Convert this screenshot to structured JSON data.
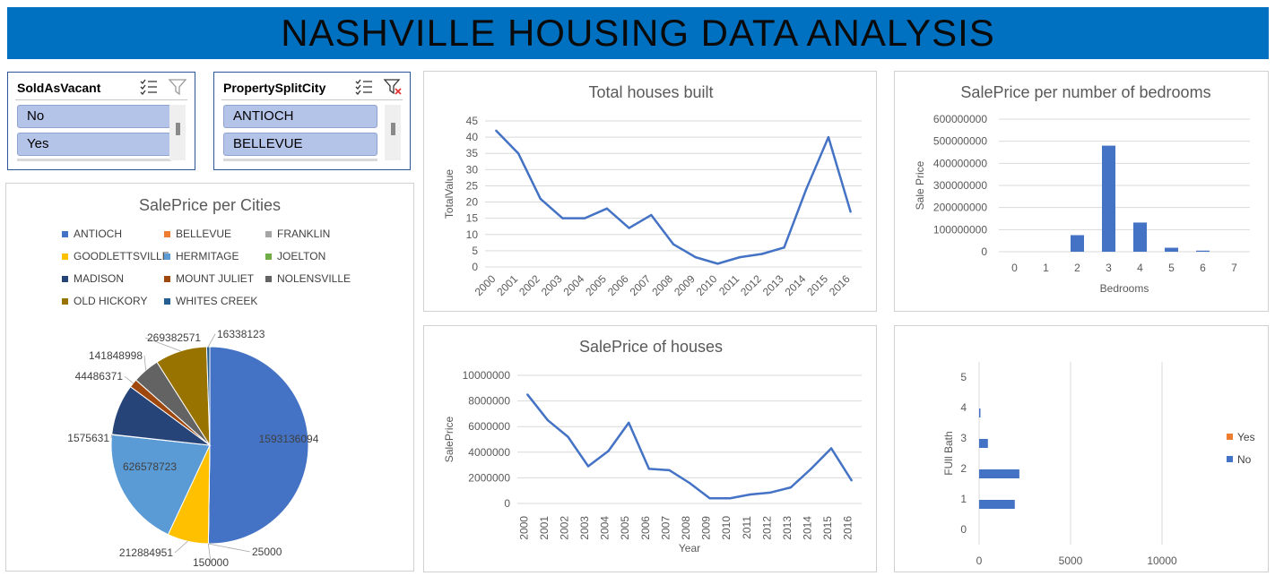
{
  "header": {
    "title": "NASHVILLE HOUSING DATA ANALYSIS",
    "bg_color": "#0070c0"
  },
  "slicers": [
    {
      "title": "SoldAsVacant",
      "items": [
        "No",
        "Yes"
      ],
      "filter_active": false
    },
    {
      "title": "PropertySplitCity",
      "items": [
        "ANTIOCH",
        "BELLEVUE"
      ],
      "filter_active": true
    }
  ],
  "chart_data": [
    {
      "type": "pie",
      "title": "SalePrice per Cities",
      "legend_position": "top",
      "series": [
        {
          "name": "ANTIOCH",
          "value": 1593136094,
          "label": "1593136094",
          "color": "#4472c4"
        },
        {
          "name": "BELLEVUE",
          "value": 25000,
          "label": "25000",
          "color": "#ed7d31"
        },
        {
          "name": "FRANKLIN",
          "value": 150000,
          "label": "150000",
          "color": "#a5a5a5"
        },
        {
          "name": "GOODLETTSVILLE",
          "value": 212884951,
          "label": "212884951",
          "color": "#ffc000"
        },
        {
          "name": "HERMITAGE",
          "value": 626578723,
          "label": "626578723",
          "color": "#5b9bd5"
        },
        {
          "name": "JOELTON",
          "value": 1575631,
          "label": "1575631",
          "color": "#70ad47"
        },
        {
          "name": "MADISON",
          "value": 265000000,
          "label": "",
          "color": "#264478"
        },
        {
          "name": "MOUNT JULIET",
          "value": 44486371,
          "label": "44486371",
          "color": "#9e480e"
        },
        {
          "name": "NOLENSVILLE",
          "value": 141848998,
          "label": "141848998",
          "color": "#636363"
        },
        {
          "name": "OLD HICKORY",
          "value": 269382571,
          "label": "269382571",
          "color": "#997300"
        },
        {
          "name": "WHITES CREEK",
          "value": 16338123,
          "label": "16338123",
          "color": "#255e91"
        }
      ]
    },
    {
      "type": "line",
      "title": "Total houses built",
      "xlabel": "",
      "ylabel": "TotalValue",
      "ylim": [
        0,
        45
      ],
      "yticks": [
        "0",
        "5",
        "10",
        "15",
        "20",
        "25",
        "30",
        "35",
        "40",
        "45"
      ],
      "grid": true,
      "x": [
        "2000",
        "2001",
        "2002",
        "2003",
        "2004",
        "2005",
        "2006",
        "2007",
        "2008",
        "2009",
        "2010",
        "2011",
        "2012",
        "2013",
        "2014",
        "2015",
        "2016"
      ],
      "values": [
        42,
        35,
        21,
        15,
        15,
        18,
        12,
        16,
        7,
        3,
        1,
        3,
        4,
        6,
        24,
        40,
        17
      ],
      "color": "#4472c4"
    },
    {
      "type": "bar",
      "title": "SalePrice per number of bedrooms",
      "xlabel": "Bedrooms",
      "ylabel": "Sale Price",
      "ylim": [
        0,
        600000000
      ],
      "yticks": [
        "0",
        "100000000",
        "200000000",
        "300000000",
        "400000000",
        "500000000",
        "600000000"
      ],
      "grid": true,
      "categories": [
        "0",
        "1",
        "2",
        "3",
        "4",
        "5",
        "6",
        "7"
      ],
      "values": [
        0,
        0,
        75000000,
        480000000,
        132000000,
        18000000,
        5000000,
        0
      ],
      "color": "#4472c4"
    },
    {
      "type": "line",
      "title": "SalePrice of houses",
      "xlabel": "Year",
      "ylabel": "SalePrice",
      "ylim": [
        0,
        10000000
      ],
      "yticks": [
        "0",
        "2000000",
        "4000000",
        "6000000",
        "8000000",
        "10000000"
      ],
      "grid": true,
      "x": [
        "2000",
        "2001",
        "2002",
        "2003",
        "2004",
        "2005",
        "2006",
        "2007",
        "2008",
        "2009",
        "2010",
        "2011",
        "2012",
        "2013",
        "2014",
        "2015",
        "2016"
      ],
      "values": [
        8500000,
        6500000,
        5200000,
        2900000,
        4100000,
        6300000,
        2700000,
        2600000,
        1600000,
        400000,
        400000,
        700000,
        850000,
        1250000,
        2700000,
        4300000,
        1800000
      ],
      "color": "#4472c4"
    },
    {
      "type": "bar",
      "orientation": "horizontal",
      "title": "",
      "xlabel": "",
      "ylabel": "FUll Bath",
      "xlim": [
        0,
        15000
      ],
      "xticks": [
        "0",
        "5000",
        "10000"
      ],
      "grid": true,
      "legend_position": "right",
      "categories": [
        "0",
        "1",
        "2",
        "3",
        "4",
        "5"
      ],
      "series": [
        {
          "name": "No",
          "values": [
            0,
            1950,
            2200,
            480,
            50,
            0
          ],
          "color": "#4472c4"
        },
        {
          "name": "Yes",
          "values": [
            0,
            0,
            0,
            0,
            0,
            0
          ],
          "color": "#ed7d31"
        }
      ]
    }
  ]
}
